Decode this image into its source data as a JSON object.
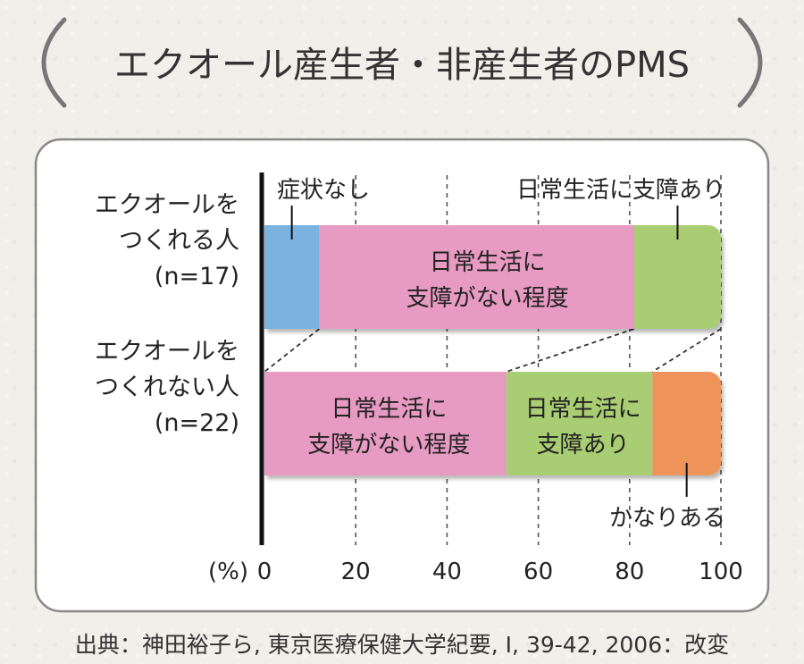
{
  "title": "エクオール産生者・非産生者のPMS",
  "source": "出典：神田裕子ら, 東京医療保健大学紀要, I, 39-42, 2006：改変",
  "colors": {
    "none": "#7ab3df",
    "no_impact": "#e79ac2",
    "impact": "#a9cd72",
    "severe": "#ee945a"
  },
  "chart_data": {
    "type": "bar",
    "orientation": "horizontal",
    "stacked": true,
    "xlim": [
      0,
      100
    ],
    "xticks": [
      0,
      20,
      40,
      60,
      80,
      100
    ],
    "x_unit_label": "(%)",
    "grid": true,
    "categories": [
      [
        "エクオールを",
        "つくれる人",
        "(n=17)"
      ],
      [
        "エクオールを",
        "つくれない人",
        "(n=22)"
      ]
    ],
    "series": [
      {
        "name": "症状なし",
        "color_key": "none",
        "values": [
          12,
          0
        ]
      },
      {
        "name": "日常生活に支障がない程度",
        "color_key": "no_impact",
        "values": [
          69,
          53
        ]
      },
      {
        "name": "日常生活に支障あり",
        "color_key": "impact",
        "values": [
          19,
          32
        ]
      },
      {
        "name": "かなりある",
        "color_key": "severe",
        "values": [
          0,
          15
        ]
      }
    ],
    "inside_labels": [
      {
        "bar": 0,
        "series": 1,
        "lines": [
          "日常生活に",
          "支障がない程度"
        ]
      },
      {
        "bar": 1,
        "series": 1,
        "lines": [
          "日常生活に",
          "支障がない程度"
        ]
      },
      {
        "bar": 1,
        "series": 2,
        "lines": [
          "日常生活に",
          "支障あり"
        ]
      }
    ],
    "callouts": [
      {
        "bar": 0,
        "series": 0,
        "text": "症状なし",
        "side": "top",
        "anchor": "end"
      },
      {
        "bar": 0,
        "series": 2,
        "text": "日常生活に支障あり",
        "side": "top",
        "anchor": "end"
      },
      {
        "bar": 1,
        "series": 3,
        "text": "かなりある",
        "side": "bottom",
        "anchor": "end"
      }
    ]
  }
}
